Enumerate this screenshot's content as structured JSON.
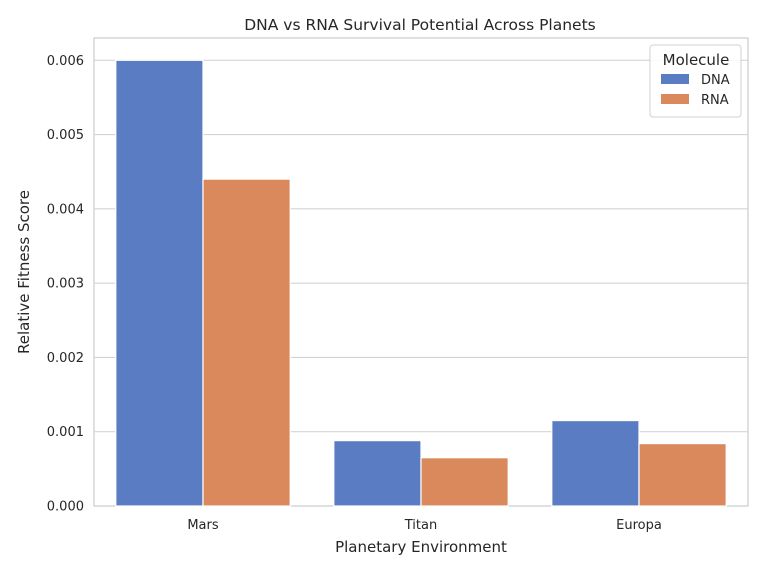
{
  "chart_data": {
    "type": "bar",
    "title": "DNA vs RNA Survival Potential Across Planets",
    "xlabel": "Planetary Environment",
    "ylabel": "Relative Fitness Score",
    "categories": [
      "Mars",
      "Titan",
      "Europa"
    ],
    "series": [
      {
        "name": "DNA",
        "values": [
          0.006,
          0.00088,
          0.00115
        ],
        "color": "#5a7cc2"
      },
      {
        "name": "RNA",
        "values": [
          0.0044,
          0.00065,
          0.00084
        ],
        "color": "#d9895b"
      }
    ],
    "ylim": [
      0,
      0.0063
    ],
    "yticks": [
      "0.000",
      "0.001",
      "0.002",
      "0.003",
      "0.004",
      "0.005",
      "0.006"
    ],
    "ytick_values": [
      0,
      0.001,
      0.002,
      0.003,
      0.004,
      0.005,
      0.006
    ],
    "grid": true,
    "legend": {
      "title": "Molecule",
      "placement": "top-right"
    }
  }
}
